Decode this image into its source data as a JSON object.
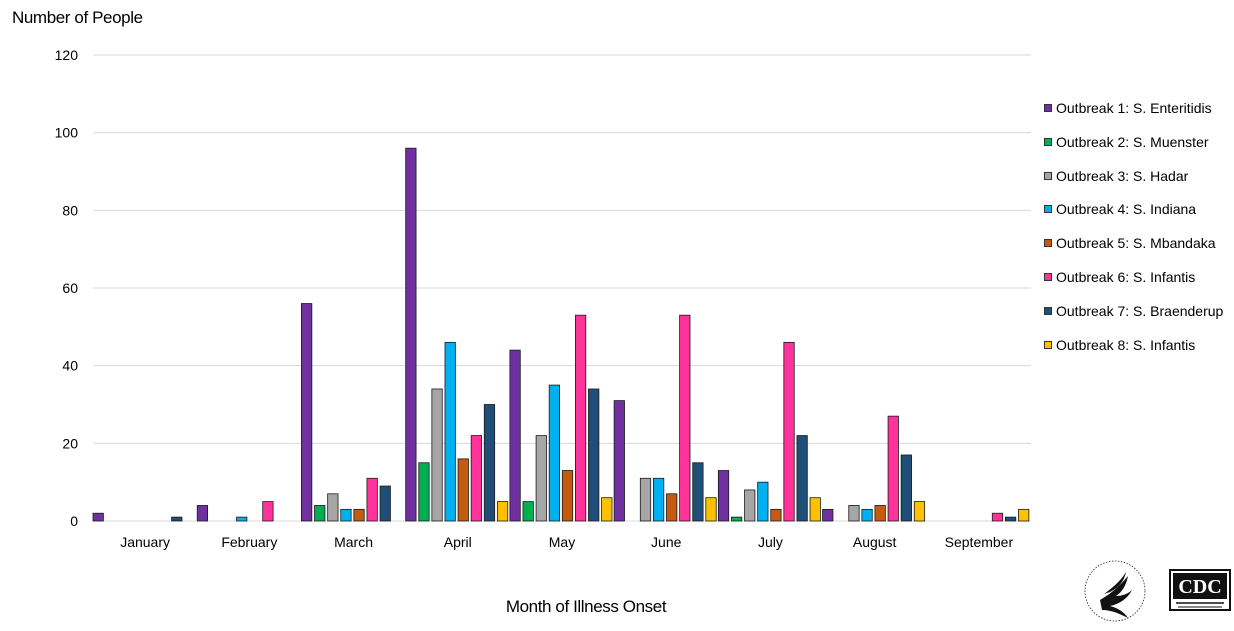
{
  "chart_data": {
    "type": "bar",
    "ylabel": "Number of People",
    "xlabel": "Month of Illness Onset",
    "ylim": [
      0,
      120
    ],
    "yticks": [
      0,
      20,
      40,
      60,
      80,
      100,
      120
    ],
    "grid": true,
    "legend_position": "right",
    "categories": [
      "January",
      "February",
      "March",
      "April",
      "May",
      "June",
      "July",
      "August",
      "September"
    ],
    "series": [
      {
        "name": "Outbreak 1: S. Enteritidis",
        "color": "#7030a0",
        "values": [
          2,
          4,
          56,
          96,
          44,
          31,
          13,
          3,
          0
        ]
      },
      {
        "name": "Outbreak 2: S. Muenster",
        "color": "#00b050",
        "values": [
          0,
          0,
          4,
          15,
          5,
          0,
          1,
          0,
          0
        ]
      },
      {
        "name": "Outbreak 3: S. Hadar",
        "color": "#a6a6a6",
        "values": [
          0,
          0,
          7,
          34,
          22,
          11,
          8,
          4,
          0
        ]
      },
      {
        "name": "Outbreak 4: S. Indiana",
        "color": "#00b0f0",
        "values": [
          0,
          1,
          3,
          46,
          35,
          11,
          10,
          3,
          0
        ]
      },
      {
        "name": "Outbreak 5: S. Mbandaka",
        "color": "#c55a11",
        "values": [
          0,
          0,
          3,
          16,
          13,
          7,
          3,
          4,
          0
        ]
      },
      {
        "name": "Outbreak 6: S. Infantis",
        "color": "#ff3399",
        "values": [
          0,
          5,
          11,
          22,
          53,
          53,
          46,
          27,
          2
        ]
      },
      {
        "name": "Outbreak 7: S. Braenderup",
        "color": "#1f4e79",
        "values": [
          1,
          0,
          9,
          30,
          34,
          15,
          22,
          17,
          1
        ]
      },
      {
        "name": "Outbreak 8: S. Infantis",
        "color": "#ffc000",
        "values": [
          0,
          0,
          0,
          5,
          6,
          6,
          6,
          5,
          3
        ]
      }
    ]
  },
  "logos": {
    "hhs_icon": "hhs-eagle-seal-icon",
    "cdc_icon": "cdc-logo-icon"
  }
}
